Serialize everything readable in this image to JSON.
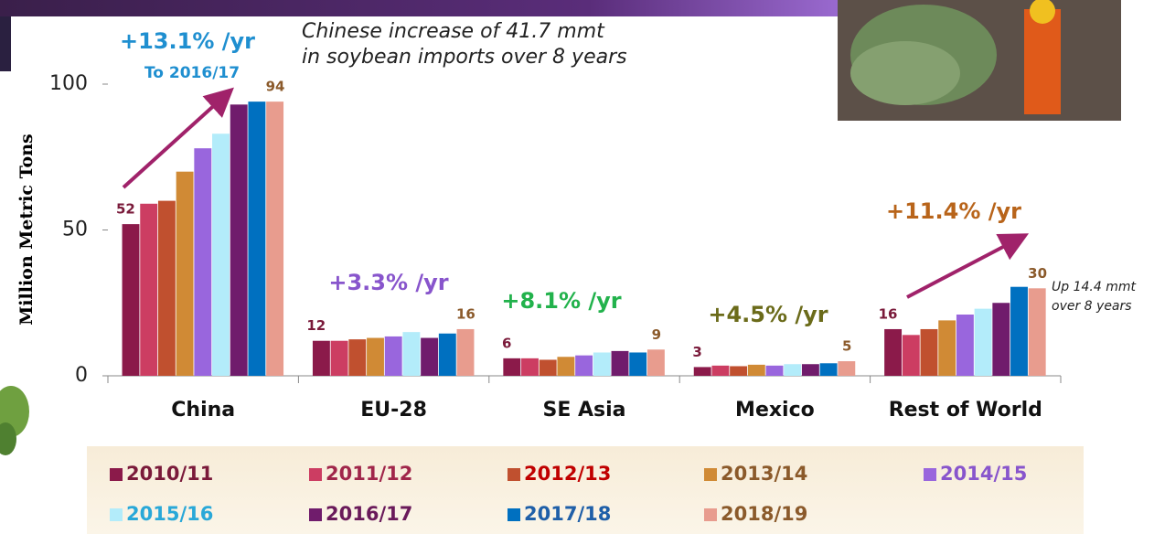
{
  "chart_data": {
    "type": "bar",
    "y_label": "Million Metric Tons",
    "categories": [
      "China",
      "EU-28",
      "SE Asia",
      "Mexico",
      "Rest of World"
    ],
    "ylim": [
      0,
      100
    ],
    "yticks": [
      0,
      50,
      100
    ],
    "series": [
      {
        "name": "2010/11",
        "color": "#8b1a4a",
        "label_color": "#7a1a3a",
        "values": [
          52,
          12,
          6,
          3,
          16
        ]
      },
      {
        "name": "2011/12",
        "color": "#cc3d62",
        "label_color": "#a0264a",
        "values": [
          59,
          12,
          6,
          3.5,
          14
        ]
      },
      {
        "name": "2012/13",
        "color": "#c0502f",
        "label_color": "#c00000",
        "values": [
          60,
          12.5,
          5.5,
          3.3,
          16
        ]
      },
      {
        "name": "2013/14",
        "color": "#d08a35",
        "label_color": "#8b5a2b",
        "values": [
          70,
          13,
          6.5,
          3.8,
          19
        ]
      },
      {
        "name": "2014/15",
        "color": "#9966dd",
        "label_color": "#8855cc",
        "values": [
          78,
          13.5,
          7,
          3.5,
          21
        ]
      },
      {
        "name": "2015/16",
        "color": "#b3ecfa",
        "label_color": "#29a8d8",
        "values": [
          83,
          15,
          8,
          4,
          23
        ]
      },
      {
        "name": "2016/17",
        "color": "#701c6c",
        "label_color": "#6a1a5a",
        "values": [
          93,
          13,
          8.5,
          4,
          25
        ]
      },
      {
        "name": "2017/18",
        "color": "#0070c0",
        "label_color": "#1f5fa8",
        "values": [
          94,
          14.5,
          8,
          4.3,
          30.5
        ]
      },
      {
        "name": "2018/19",
        "color": "#e89c8e",
        "label_color": "#8b5a2b",
        "values": [
          94,
          16,
          9,
          5,
          30
        ]
      }
    ],
    "annotations": [
      "+13.1% /yr",
      "To 2016/17",
      "Chinese increase of 41.7 mmt",
      "in soybean imports over 8 years",
      "+3.3% /yr",
      "+8.1% /yr",
      "+4.5% /yr",
      "+11.4% /yr",
      "Up 14.4 mmt",
      "over 8 years"
    ]
  }
}
